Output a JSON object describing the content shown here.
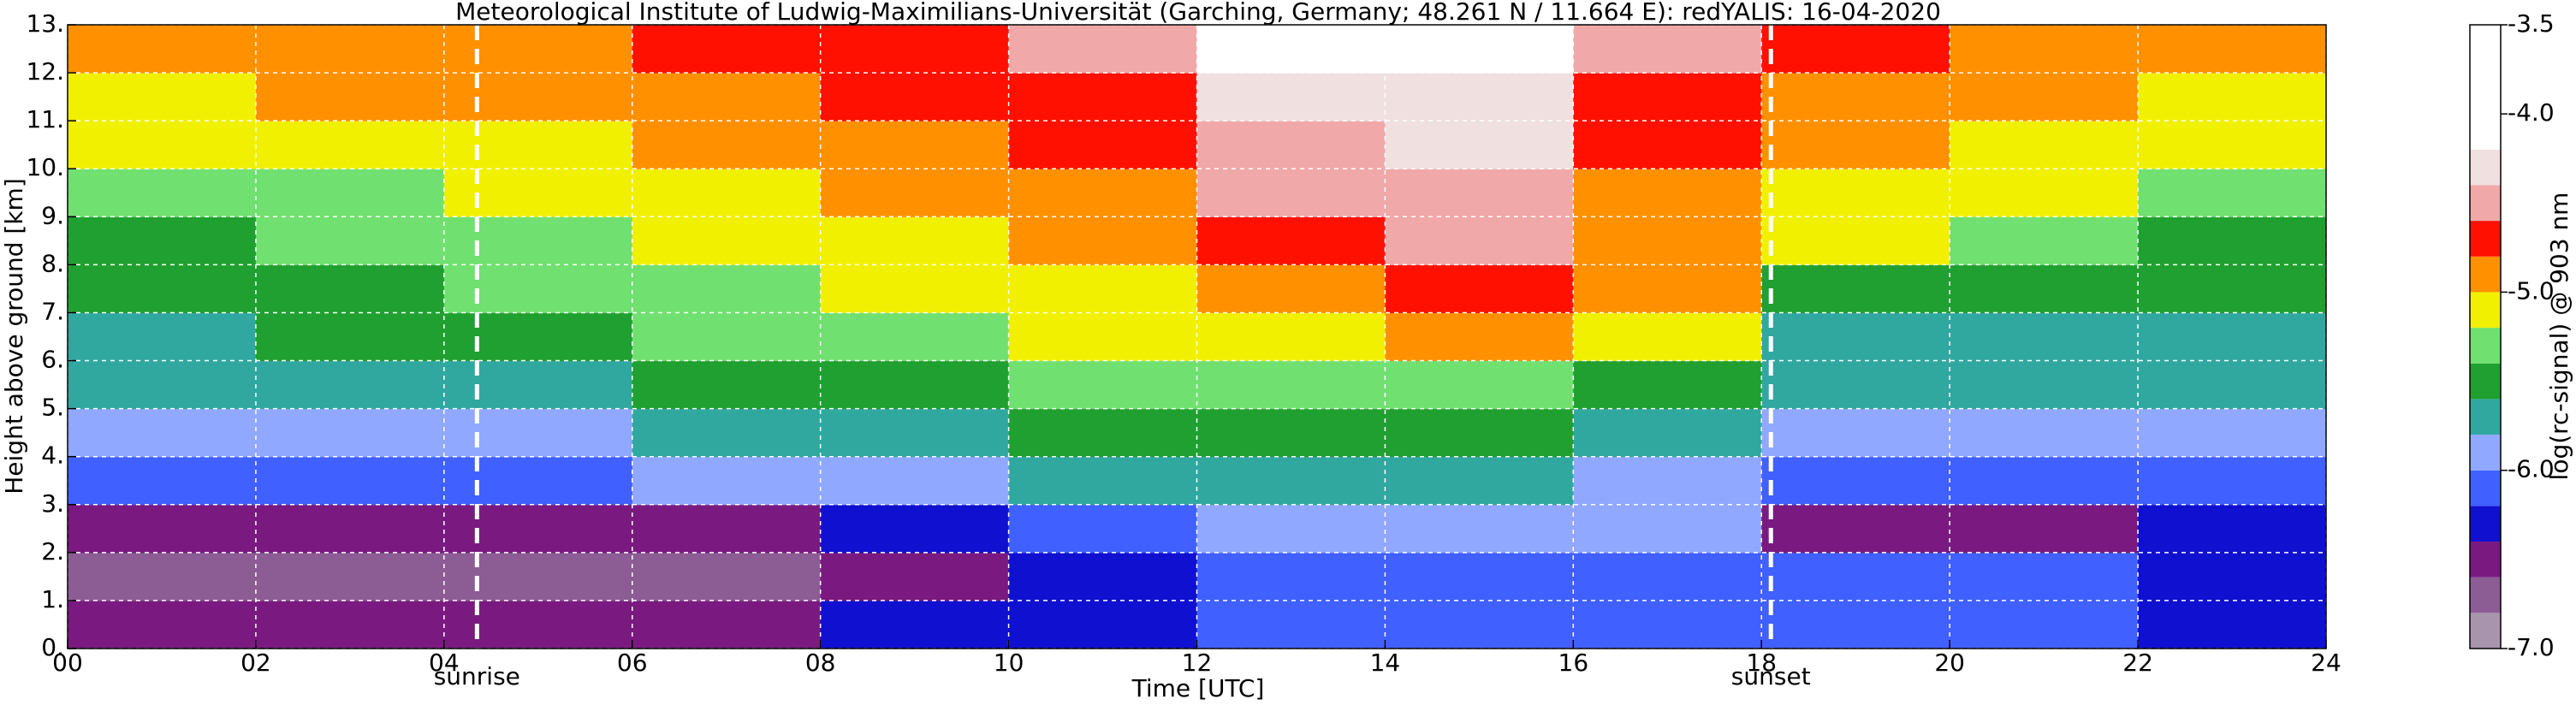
{
  "chart_data": {
    "type": "heatmap",
    "title": "Meteorological Institute of Ludwig-Maximilians-Universität (Garching, Germany; 48.261 N / 11.664 E):    redYALIS: 16-04-2020",
    "x_label": "Time [UTC]",
    "y_label": "Height above ground [km]",
    "colorbar_label": "log(rc-signal) @ 903 nm",
    "xlim": [
      0,
      24
    ],
    "ylim": [
      0,
      13
    ],
    "xticks": [
      {
        "value": 0,
        "label": "00"
      },
      {
        "value": 2,
        "label": "02"
      },
      {
        "value": 4,
        "label": "04"
      },
      {
        "value": 6,
        "label": "06"
      },
      {
        "value": 8,
        "label": "08"
      },
      10,
      12,
      14,
      16,
      18,
      20,
      22,
      24
    ],
    "yticks": [
      {
        "value": 0,
        "label": "0."
      },
      {
        "value": 1,
        "label": "1."
      },
      {
        "value": 2,
        "label": "2."
      },
      {
        "value": 3,
        "label": "3."
      },
      {
        "value": 4,
        "label": "4."
      },
      {
        "value": 5,
        "label": "5."
      },
      {
        "value": 6,
        "label": "6."
      },
      {
        "value": 7,
        "label": "7."
      },
      {
        "value": 8,
        "label": "8."
      },
      {
        "value": 9,
        "label": "9."
      },
      {
        "value": 10,
        "label": "10."
      },
      {
        "value": 11,
        "label": "11."
      },
      {
        "value": 12,
        "label": "12."
      },
      {
        "value": 13,
        "label": "13."
      }
    ],
    "grid": true,
    "x_bins": [
      0,
      2,
      4,
      6,
      8,
      10,
      12,
      14,
      16,
      18,
      20,
      22,
      24
    ],
    "y_bins": [
      0,
      1,
      2,
      3,
      4,
      5,
      6,
      7,
      8,
      9,
      10,
      11,
      12,
      13
    ],
    "values": [
      [
        -6.5,
        -6.5,
        -6.5,
        -6.4,
        -6.3,
        -6.2,
        -6.1,
        -6.0,
        -6.0,
        -6.0,
        -6.1,
        -6.2
      ],
      [
        -6.6,
        -6.6,
        -6.6,
        -6.6,
        -6.5,
        -6.3,
        -6.1,
        -6.0,
        -6.0,
        -6.0,
        -6.1,
        -6.2
      ],
      [
        -6.5,
        -6.5,
        -6.5,
        -6.4,
        -6.2,
        -6.0,
        -5.9,
        -5.8,
        -5.9,
        -6.4,
        -6.4,
        -6.3
      ],
      [
        -6.1,
        -6.1,
        -6.0,
        -5.9,
        -5.8,
        -5.7,
        -5.6,
        -5.6,
        -5.8,
        -6.1,
        -6.1,
        -6.0
      ],
      [
        -5.9,
        -5.9,
        -5.8,
        -5.7,
        -5.6,
        -5.5,
        -5.5,
        -5.5,
        -5.6,
        -5.9,
        -5.9,
        -5.9
      ],
      [
        -5.7,
        -5.7,
        -5.6,
        -5.5,
        -5.4,
        -5.3,
        -5.3,
        -5.3,
        -5.4,
        -5.7,
        -5.7,
        -5.7
      ],
      [
        -5.6,
        -5.5,
        -5.4,
        -5.3,
        -5.2,
        -5.1,
        -5.1,
        -4.9,
        -5.0,
        -5.6,
        -5.6,
        -5.6
      ],
      [
        -5.5,
        -5.4,
        -5.3,
        -5.2,
        -5.1,
        -5.0,
        -4.9,
        -4.7,
        -4.9,
        -5.4,
        -5.5,
        -5.5
      ],
      [
        -5.4,
        -5.3,
        -5.2,
        -5.1,
        -5.0,
        -4.9,
        -4.7,
        -4.5,
        -4.9,
        -5.1,
        -5.3,
        -5.4
      ],
      [
        -5.2,
        -5.2,
        -5.1,
        -5.0,
        -4.9,
        -4.8,
        -4.5,
        -4.4,
        -4.8,
        -5.1,
        -5.1,
        -5.3
      ],
      [
        -5.1,
        -5.1,
        -5.0,
        -4.9,
        -4.8,
        -4.7,
        -4.4,
        -4.3,
        -4.7,
        -4.9,
        -5.0,
        -5.1
      ],
      [
        -5.0,
        -4.9,
        -4.9,
        -4.8,
        -4.7,
        -4.6,
        -4.3,
        -4.2,
        -4.6,
        -4.8,
        -4.9,
        -5.0
      ],
      [
        -4.9,
        -4.8,
        -4.8,
        -4.7,
        -4.6,
        -4.5,
        -4.1,
        -4.0,
        -4.5,
        -4.7,
        -4.8,
        -4.9
      ]
    ],
    "zlim": [
      -7,
      -3.5
    ],
    "zticks": [
      -3.5,
      {
        "value": -4,
        "label": "-4.0"
      },
      {
        "value": -5,
        "label": "-5.0"
      },
      {
        "value": -6,
        "label": "-6.0"
      },
      {
        "value": -7,
        "label": "-7.0"
      }
    ],
    "colorbar": {
      "bounds": [
        -7,
        -6.8,
        -6.6,
        -6.4,
        -6.2,
        -6.0,
        -5.8,
        -5.6,
        -5.4,
        -5.2,
        -5.0,
        -4.8,
        -4.6,
        -4.4,
        -4.2,
        -3.5
      ],
      "colors": [
        "#a894ac",
        "#8c5c94",
        "#7a1a80",
        "#1010d0",
        "#4060ff",
        "#90a8ff",
        "#30a8a0",
        "#20a030",
        "#70e070",
        "#f0f000",
        "#ff9000",
        "#ff1000",
        "#f0a8a8",
        "#f0e0e0",
        "#ffffff"
      ]
    },
    "annotations": [
      {
        "text": "sunrise",
        "x": 4.35
      },
      {
        "text": "sunset",
        "x": 18.1
      }
    ]
  }
}
